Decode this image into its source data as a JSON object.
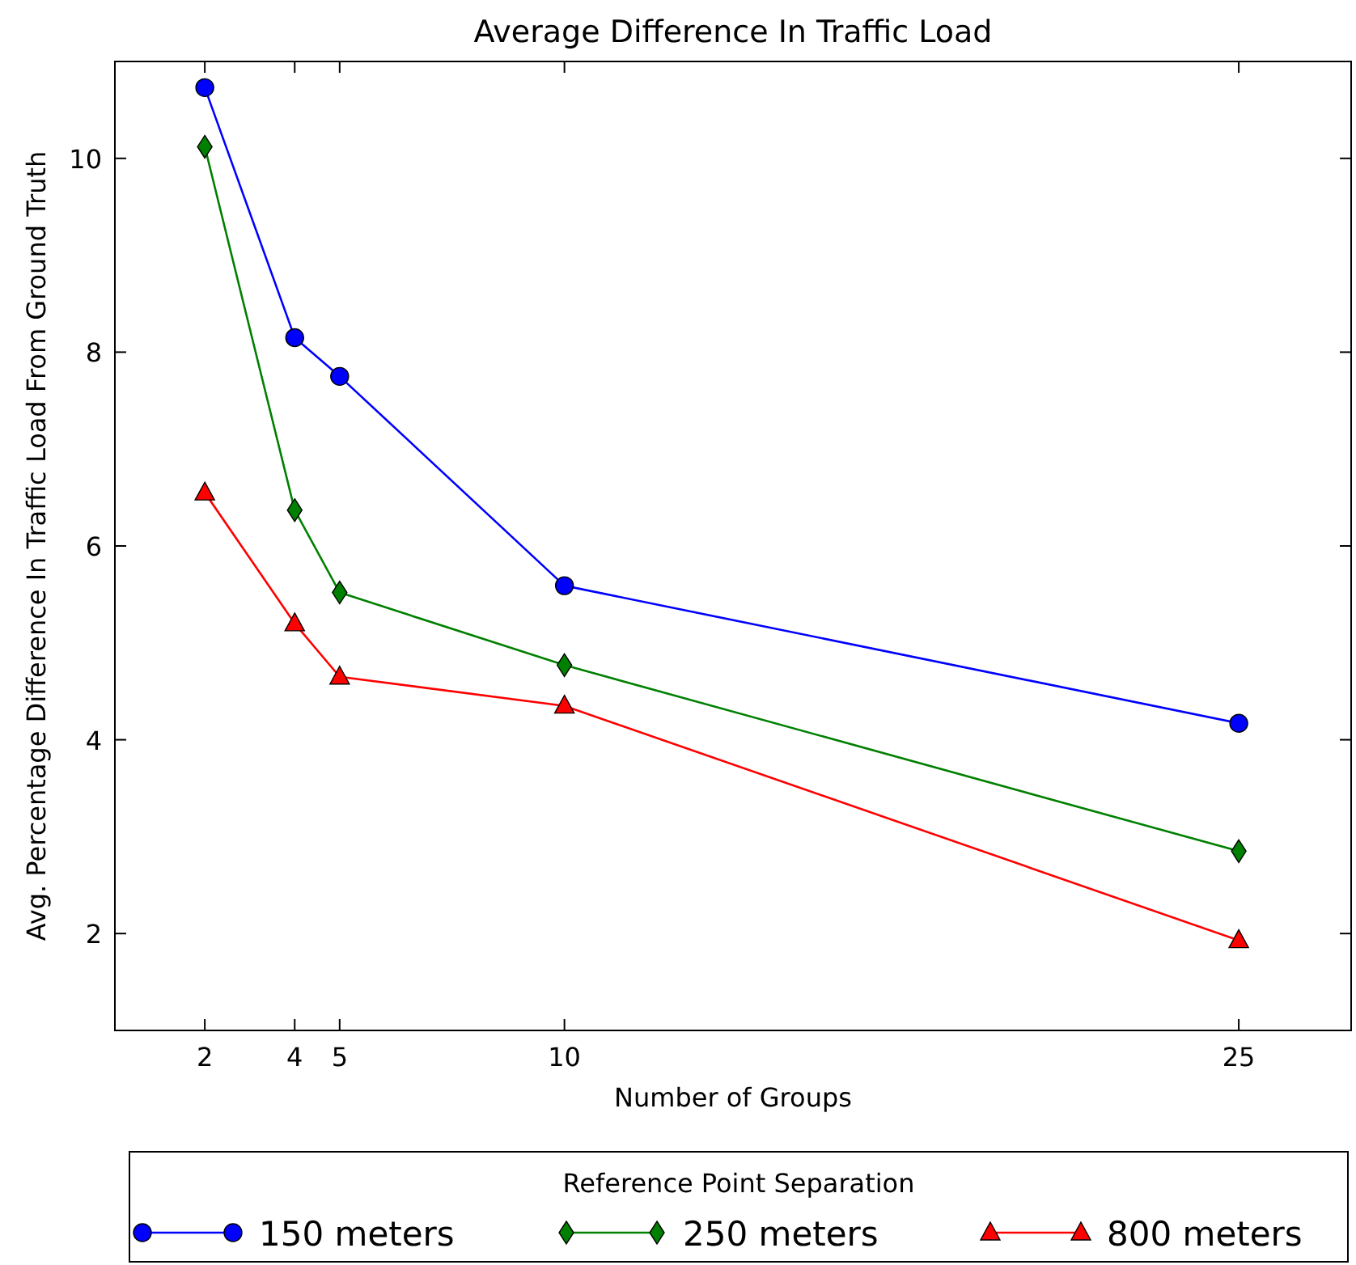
{
  "chart_data": {
    "type": "line",
    "title": "Average Difference In Traffic Load",
    "xlabel": "Number of Groups",
    "ylabel": "Avg. Percentage Difference In Traffic Load From Ground Truth",
    "legend_title": "Reference Point Separation",
    "x": [
      2,
      4,
      5,
      10,
      25
    ],
    "series": [
      {
        "name": "150 meters",
        "color": "#0000ff",
        "marker": "circle",
        "values": [
          10.73,
          8.15,
          7.75,
          5.59,
          4.17
        ]
      },
      {
        "name": "250 meters",
        "color": "#008000",
        "marker": "diamond",
        "values": [
          10.12,
          6.37,
          5.52,
          4.77,
          2.85
        ]
      },
      {
        "name": "800 meters",
        "color": "#ff0000",
        "marker": "triangle",
        "values": [
          6.55,
          5.2,
          4.65,
          4.35,
          1.93
        ]
      }
    ],
    "xlim": [
      0,
      27.5
    ],
    "xticks": [
      2,
      4,
      5,
      10,
      25
    ],
    "ylim": [
      1,
      11
    ],
    "yticks": [
      2,
      4,
      6,
      8,
      10
    ],
    "grid": false,
    "legend": "bottom",
    "line_style": "solid"
  }
}
